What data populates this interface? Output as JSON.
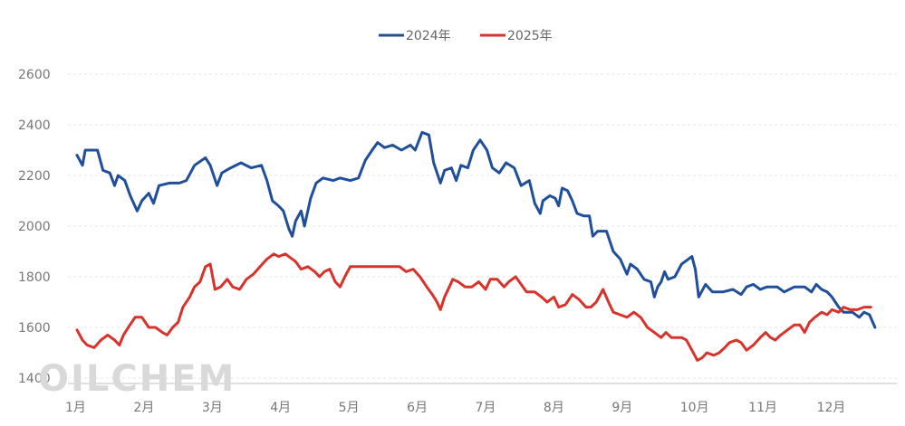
{
  "chart_data": {
    "type": "line",
    "title": "",
    "xlabel": "",
    "ylabel": "",
    "ylim": [
      1400,
      2600
    ],
    "yticks": [
      1400,
      1600,
      1800,
      2000,
      2200,
      2400,
      2600
    ],
    "xlim": [
      1,
      13
    ],
    "x_ticks": [
      {
        "label": "1月",
        "pos": 1
      },
      {
        "label": "2月",
        "pos": 2
      },
      {
        "label": "3月",
        "pos": 3
      },
      {
        "label": "4月",
        "pos": 4
      },
      {
        "label": "5月",
        "pos": 5
      },
      {
        "label": "6月",
        "pos": 6
      },
      {
        "label": "7月",
        "pos": 7
      },
      {
        "label": "8月",
        "pos": 8
      },
      {
        "label": "9月",
        "pos": 9
      },
      {
        "label": "10月",
        "pos": 10
      },
      {
        "label": "11月",
        "pos": 11
      },
      {
        "label": "12月",
        "pos": 12
      }
    ],
    "grid": true,
    "legend_position": "top-center",
    "series": [
      {
        "name": "2024年",
        "color": "#1f4e9b",
        "points": [
          [
            1.0,
            2280
          ],
          [
            1.08,
            2240
          ],
          [
            1.12,
            2300
          ],
          [
            1.3,
            2300
          ],
          [
            1.38,
            2220
          ],
          [
            1.48,
            2210
          ],
          [
            1.55,
            2160
          ],
          [
            1.6,
            2200
          ],
          [
            1.7,
            2180
          ],
          [
            1.78,
            2120
          ],
          [
            1.88,
            2060
          ],
          [
            1.95,
            2100
          ],
          [
            2.05,
            2130
          ],
          [
            2.12,
            2090
          ],
          [
            2.2,
            2160
          ],
          [
            2.35,
            2170
          ],
          [
            2.5,
            2170
          ],
          [
            2.6,
            2180
          ],
          [
            2.72,
            2240
          ],
          [
            2.88,
            2270
          ],
          [
            2.95,
            2240
          ],
          [
            3.05,
            2160
          ],
          [
            3.12,
            2210
          ],
          [
            3.25,
            2230
          ],
          [
            3.4,
            2250
          ],
          [
            3.55,
            2230
          ],
          [
            3.7,
            2240
          ],
          [
            3.78,
            2180
          ],
          [
            3.86,
            2100
          ],
          [
            3.95,
            2080
          ],
          [
            4.02,
            2060
          ],
          [
            4.1,
            1990
          ],
          [
            4.15,
            1960
          ],
          [
            4.2,
            2020
          ],
          [
            4.28,
            2060
          ],
          [
            4.33,
            2000
          ],
          [
            4.42,
            2110
          ],
          [
            4.5,
            2170
          ],
          [
            4.6,
            2190
          ],
          [
            4.75,
            2180
          ],
          [
            4.85,
            2190
          ],
          [
            5.0,
            2180
          ],
          [
            5.12,
            2190
          ],
          [
            5.22,
            2260
          ],
          [
            5.32,
            2300
          ],
          [
            5.4,
            2330
          ],
          [
            5.5,
            2310
          ],
          [
            5.62,
            2320
          ],
          [
            5.75,
            2300
          ],
          [
            5.88,
            2320
          ],
          [
            5.95,
            2300
          ],
          [
            6.05,
            2370
          ],
          [
            6.15,
            2360
          ],
          [
            6.22,
            2250
          ],
          [
            6.32,
            2170
          ],
          [
            6.38,
            2220
          ],
          [
            6.48,
            2230
          ],
          [
            6.55,
            2180
          ],
          [
            6.62,
            2240
          ],
          [
            6.72,
            2230
          ],
          [
            6.8,
            2300
          ],
          [
            6.9,
            2340
          ],
          [
            7.0,
            2300
          ],
          [
            7.08,
            2230
          ],
          [
            7.18,
            2210
          ],
          [
            7.28,
            2250
          ],
          [
            7.4,
            2230
          ],
          [
            7.5,
            2160
          ],
          [
            7.62,
            2180
          ],
          [
            7.7,
            2090
          ],
          [
            7.78,
            2050
          ],
          [
            7.82,
            2100
          ],
          [
            7.92,
            2120
          ],
          [
            8.0,
            2110
          ],
          [
            8.05,
            2080
          ],
          [
            8.1,
            2150
          ],
          [
            8.18,
            2140
          ],
          [
            8.25,
            2100
          ],
          [
            8.32,
            2050
          ],
          [
            8.42,
            2040
          ],
          [
            8.5,
            2040
          ],
          [
            8.55,
            1960
          ],
          [
            8.62,
            1980
          ],
          [
            8.75,
            1980
          ],
          [
            8.85,
            1900
          ],
          [
            8.95,
            1870
          ],
          [
            9.05,
            1810
          ],
          [
            9.1,
            1850
          ],
          [
            9.2,
            1830
          ],
          [
            9.3,
            1790
          ],
          [
            9.4,
            1780
          ],
          [
            9.45,
            1720
          ],
          [
            9.5,
            1760
          ],
          [
            9.55,
            1780
          ],
          [
            9.6,
            1820
          ],
          [
            9.65,
            1790
          ],
          [
            9.75,
            1800
          ],
          [
            9.85,
            1850
          ],
          [
            9.95,
            1870
          ],
          [
            10.0,
            1880
          ],
          [
            10.05,
            1830
          ],
          [
            10.1,
            1720
          ],
          [
            10.2,
            1770
          ],
          [
            10.3,
            1740
          ],
          [
            10.45,
            1740
          ],
          [
            10.6,
            1750
          ],
          [
            10.72,
            1730
          ],
          [
            10.8,
            1760
          ],
          [
            10.9,
            1770
          ],
          [
            11.0,
            1750
          ],
          [
            11.1,
            1760
          ],
          [
            11.25,
            1760
          ],
          [
            11.35,
            1740
          ],
          [
            11.5,
            1760
          ],
          [
            11.65,
            1760
          ],
          [
            11.75,
            1740
          ],
          [
            11.82,
            1770
          ],
          [
            11.9,
            1750
          ],
          [
            11.98,
            1740
          ],
          [
            12.05,
            1720
          ],
          [
            12.1,
            1700
          ],
          [
            12.15,
            1680
          ],
          [
            12.22,
            1660
          ],
          [
            12.35,
            1660
          ],
          [
            12.45,
            1640
          ],
          [
            12.52,
            1660
          ],
          [
            12.6,
            1650
          ],
          [
            12.68,
            1600
          ]
        ]
      },
      {
        "name": "2025年",
        "color": "#d9322b",
        "points": [
          [
            1.0,
            1590
          ],
          [
            1.08,
            1550
          ],
          [
            1.15,
            1530
          ],
          [
            1.25,
            1520
          ],
          [
            1.35,
            1550
          ],
          [
            1.45,
            1570
          ],
          [
            1.55,
            1550
          ],
          [
            1.62,
            1530
          ],
          [
            1.68,
            1570
          ],
          [
            1.75,
            1600
          ],
          [
            1.85,
            1640
          ],
          [
            1.95,
            1640
          ],
          [
            2.05,
            1600
          ],
          [
            2.15,
            1600
          ],
          [
            2.25,
            1580
          ],
          [
            2.32,
            1570
          ],
          [
            2.4,
            1600
          ],
          [
            2.48,
            1620
          ],
          [
            2.55,
            1680
          ],
          [
            2.65,
            1720
          ],
          [
            2.72,
            1760
          ],
          [
            2.8,
            1780
          ],
          [
            2.88,
            1840
          ],
          [
            2.95,
            1850
          ],
          [
            3.02,
            1750
          ],
          [
            3.1,
            1760
          ],
          [
            3.2,
            1790
          ],
          [
            3.28,
            1760
          ],
          [
            3.38,
            1750
          ],
          [
            3.48,
            1790
          ],
          [
            3.58,
            1810
          ],
          [
            3.68,
            1840
          ],
          [
            3.78,
            1870
          ],
          [
            3.88,
            1890
          ],
          [
            3.95,
            1880
          ],
          [
            4.05,
            1890
          ],
          [
            4.15,
            1870
          ],
          [
            4.2,
            1860
          ],
          [
            4.28,
            1830
          ],
          [
            4.38,
            1840
          ],
          [
            4.48,
            1820
          ],
          [
            4.55,
            1800
          ],
          [
            4.62,
            1820
          ],
          [
            4.7,
            1830
          ],
          [
            4.78,
            1780
          ],
          [
            4.85,
            1760
          ],
          [
            4.92,
            1800
          ],
          [
            5.0,
            1840
          ],
          [
            5.15,
            1840
          ],
          [
            5.3,
            1840
          ],
          [
            5.45,
            1840
          ],
          [
            5.6,
            1840
          ],
          [
            5.72,
            1840
          ],
          [
            5.82,
            1820
          ],
          [
            5.92,
            1830
          ],
          [
            6.02,
            1800
          ],
          [
            6.12,
            1760
          ],
          [
            6.2,
            1730
          ],
          [
            6.27,
            1700
          ],
          [
            6.32,
            1670
          ],
          [
            6.38,
            1720
          ],
          [
            6.45,
            1760
          ],
          [
            6.5,
            1790
          ],
          [
            6.58,
            1780
          ],
          [
            6.68,
            1760
          ],
          [
            6.78,
            1760
          ],
          [
            6.88,
            1780
          ],
          [
            6.98,
            1750
          ],
          [
            7.05,
            1790
          ],
          [
            7.15,
            1790
          ],
          [
            7.25,
            1760
          ],
          [
            7.32,
            1780
          ],
          [
            7.42,
            1800
          ],
          [
            7.5,
            1770
          ],
          [
            7.58,
            1740
          ],
          [
            7.7,
            1740
          ],
          [
            7.8,
            1720
          ],
          [
            7.88,
            1700
          ],
          [
            7.98,
            1720
          ],
          [
            8.05,
            1680
          ],
          [
            8.15,
            1690
          ],
          [
            8.25,
            1730
          ],
          [
            8.35,
            1710
          ],
          [
            8.45,
            1680
          ],
          [
            8.52,
            1680
          ],
          [
            8.6,
            1700
          ],
          [
            8.7,
            1750
          ],
          [
            8.78,
            1700
          ],
          [
            8.85,
            1660
          ],
          [
            8.95,
            1650
          ],
          [
            9.05,
            1640
          ],
          [
            9.15,
            1660
          ],
          [
            9.25,
            1640
          ],
          [
            9.35,
            1600
          ],
          [
            9.45,
            1580
          ],
          [
            9.55,
            1560
          ],
          [
            9.62,
            1580
          ],
          [
            9.7,
            1560
          ],
          [
            9.78,
            1560
          ],
          [
            9.85,
            1560
          ],
          [
            9.92,
            1550
          ],
          [
            10.0,
            1510
          ],
          [
            10.08,
            1470
          ],
          [
            10.15,
            1480
          ],
          [
            10.22,
            1500
          ],
          [
            10.32,
            1490
          ],
          [
            10.4,
            1500
          ],
          [
            10.48,
            1520
          ],
          [
            10.55,
            1540
          ],
          [
            10.65,
            1550
          ],
          [
            10.72,
            1540
          ],
          [
            10.8,
            1510
          ],
          [
            10.9,
            1530
          ],
          [
            11.0,
            1560
          ],
          [
            11.08,
            1580
          ],
          [
            11.15,
            1560
          ],
          [
            11.22,
            1550
          ],
          [
            11.3,
            1570
          ],
          [
            11.4,
            1590
          ],
          [
            11.5,
            1610
          ],
          [
            11.58,
            1610
          ],
          [
            11.65,
            1580
          ],
          [
            11.72,
            1620
          ],
          [
            11.8,
            1640
          ],
          [
            11.9,
            1660
          ],
          [
            11.98,
            1650
          ],
          [
            12.05,
            1670
          ],
          [
            12.15,
            1660
          ],
          [
            12.22,
            1680
          ],
          [
            12.32,
            1670
          ],
          [
            12.42,
            1670
          ],
          [
            12.52,
            1680
          ],
          [
            12.62,
            1680
          ]
        ]
      }
    ]
  },
  "watermark": "OILCHEM"
}
